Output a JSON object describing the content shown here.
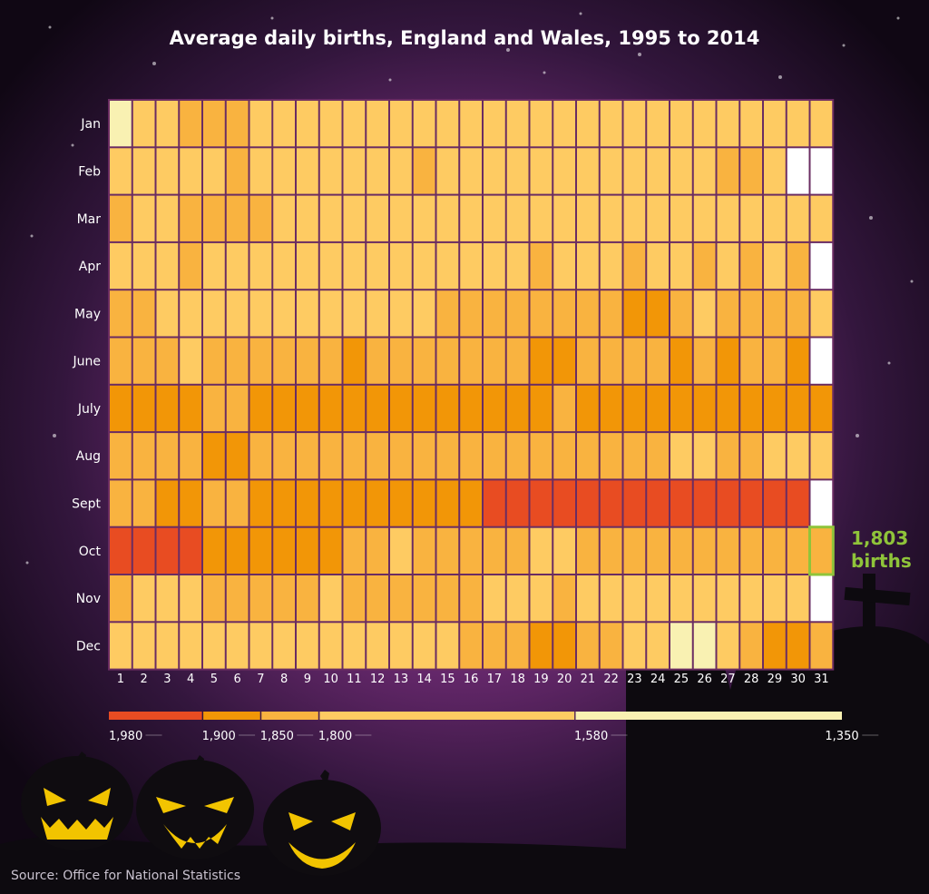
{
  "title": "Average daily births, England and Wales, 1995 to 2014",
  "source": "Source: Office for National Statistics",
  "annotation": {
    "value": "1,803",
    "unit": "births",
    "month": "Oct",
    "day": 31,
    "color": "#8fc43a"
  },
  "chart_data": {
    "type": "heatmap",
    "title": "Average daily births, England and Wales, 1995 to 2014",
    "rows": [
      "Jan",
      "Feb",
      "Mar",
      "Apr",
      "May",
      "June",
      "July",
      "Aug",
      "Sept",
      "Oct",
      "Nov",
      "Dec"
    ],
    "columns": [
      1,
      2,
      3,
      4,
      5,
      6,
      7,
      8,
      9,
      10,
      11,
      12,
      13,
      14,
      15,
      16,
      17,
      18,
      19,
      20,
      21,
      22,
      23,
      24,
      25,
      26,
      27,
      28,
      29,
      30,
      31
    ],
    "legend": {
      "labels": [
        "1,980",
        "1,900",
        "1,850",
        "1,800",
        "1,580",
        "1,350"
      ],
      "thresholds": [
        1980,
        1900,
        1850,
        1800,
        1580,
        1350
      ],
      "colors": [
        "#e84c22",
        "#f29607",
        "#f9b340",
        "#fecb62",
        "#f9f1b2"
      ],
      "empty_color": "#ffffff"
    },
    "values_note": "bin levels 0..4 (0 = 1,900-1,980, 1 = 1,850-1,900, 2 = 1,800-1,850, 3 = 1,580-1,800, 4 = 1,350-1,580); null = day does not exist",
    "levels": [
      [
        4,
        3,
        3,
        2,
        2,
        2,
        3,
        3,
        3,
        3,
        3,
        3,
        3,
        3,
        3,
        3,
        3,
        3,
        3,
        3,
        3,
        3,
        3,
        3,
        3,
        3,
        3,
        3,
        3,
        3,
        3
      ],
      [
        3,
        3,
        3,
        3,
        3,
        2,
        3,
        3,
        3,
        3,
        3,
        3,
        3,
        2,
        3,
        3,
        3,
        3,
        3,
        3,
        3,
        3,
        3,
        3,
        3,
        3,
        2,
        2,
        3,
        null,
        null
      ],
      [
        2,
        3,
        3,
        2,
        2,
        2,
        2,
        3,
        3,
        3,
        3,
        3,
        3,
        3,
        3,
        3,
        3,
        3,
        3,
        3,
        3,
        3,
        3,
        3,
        3,
        3,
        3,
        3,
        3,
        3,
        3
      ],
      [
        3,
        3,
        3,
        2,
        3,
        3,
        3,
        3,
        3,
        3,
        3,
        3,
        3,
        3,
        3,
        3,
        3,
        3,
        2,
        3,
        3,
        3,
        2,
        3,
        3,
        2,
        3,
        2,
        3,
        2,
        null
      ],
      [
        2,
        2,
        3,
        3,
        3,
        3,
        3,
        3,
        3,
        3,
        3,
        3,
        3,
        3,
        2,
        2,
        2,
        2,
        2,
        2,
        2,
        2,
        1,
        1,
        2,
        3,
        2,
        2,
        2,
        2,
        3
      ],
      [
        2,
        2,
        2,
        3,
        2,
        2,
        2,
        2,
        2,
        2,
        1,
        2,
        2,
        2,
        2,
        2,
        2,
        2,
        1,
        1,
        2,
        2,
        2,
        2,
        1,
        2,
        1,
        2,
        2,
        1,
        null
      ],
      [
        1,
        1,
        1,
        1,
        2,
        2,
        1,
        1,
        1,
        1,
        1,
        1,
        1,
        1,
        1,
        1,
        1,
        1,
        1,
        2,
        1,
        1,
        1,
        1,
        1,
        1,
        1,
        1,
        1,
        1,
        1
      ],
      [
        2,
        2,
        2,
        2,
        1,
        1,
        2,
        2,
        2,
        2,
        2,
        2,
        2,
        2,
        2,
        2,
        2,
        2,
        2,
        2,
        2,
        2,
        2,
        2,
        3,
        3,
        2,
        2,
        3,
        3,
        3
      ],
      [
        2,
        2,
        1,
        1,
        2,
        2,
        1,
        1,
        1,
        1,
        1,
        1,
        1,
        1,
        1,
        1,
        0,
        0,
        0,
        0,
        0,
        0,
        0,
        0,
        0,
        0,
        0,
        0,
        0,
        0,
        null
      ],
      [
        0,
        0,
        0,
        0,
        1,
        1,
        1,
        1,
        1,
        1,
        2,
        2,
        3,
        2,
        2,
        2,
        2,
        2,
        3,
        3,
        2,
        2,
        2,
        2,
        2,
        2,
        2,
        2,
        2,
        2,
        2
      ],
      [
        2,
        3,
        3,
        3,
        2,
        2,
        2,
        2,
        2,
        3,
        2,
        2,
        2,
        2,
        2,
        2,
        3,
        3,
        3,
        2,
        3,
        3,
        3,
        3,
        3,
        3,
        3,
        3,
        3,
        3,
        null
      ],
      [
        3,
        3,
        3,
        3,
        3,
        3,
        3,
        3,
        3,
        3,
        3,
        3,
        3,
        3,
        3,
        2,
        2,
        2,
        1,
        1,
        2,
        2,
        3,
        3,
        4,
        4,
        3,
        2,
        1,
        1,
        2
      ]
    ]
  }
}
